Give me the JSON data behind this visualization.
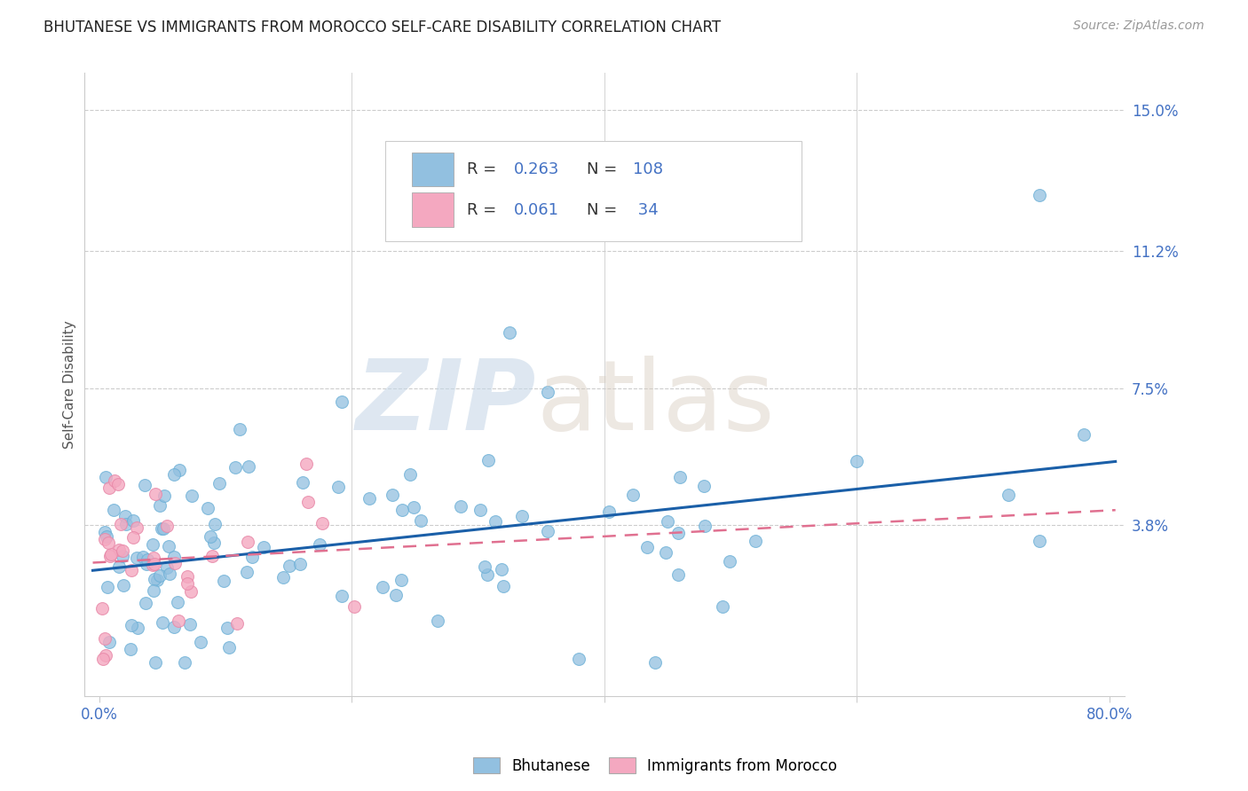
{
  "title": "BHUTANESE VS IMMIGRANTS FROM MOROCCO SELF-CARE DISABILITY CORRELATION CHART",
  "source": "Source: ZipAtlas.com",
  "ylabel": "Self-Care Disability",
  "yticks": [
    0.0,
    0.038,
    0.075,
    0.112,
    0.15
  ],
  "ytick_labels": [
    "",
    "3.8%",
    "7.5%",
    "11.2%",
    "15.0%"
  ],
  "xlim": [
    0.0,
    0.8
  ],
  "ylim": [
    -0.008,
    0.16
  ],
  "blue_color": "#92c0e0",
  "blue_edge_color": "#6aafd6",
  "pink_color": "#f4a8c0",
  "pink_edge_color": "#e888a8",
  "blue_line_color": "#1a5fa8",
  "pink_line_color": "#e07090",
  "title_fontsize": 12,
  "source_fontsize": 10,
  "tick_fontsize": 12,
  "blue_R": 0.263,
  "blue_N": 108,
  "pink_R": 0.061,
  "pink_N": 34,
  "blue_line_start_y": 0.026,
  "blue_line_end_y": 0.055,
  "pink_line_start_y": 0.028,
  "pink_line_end_y": 0.042,
  "watermark_zip_color": "#c8d8e8",
  "watermark_atlas_color": "#d8ccc0",
  "grid_color": "#cccccc",
  "spine_color": "#cccccc"
}
